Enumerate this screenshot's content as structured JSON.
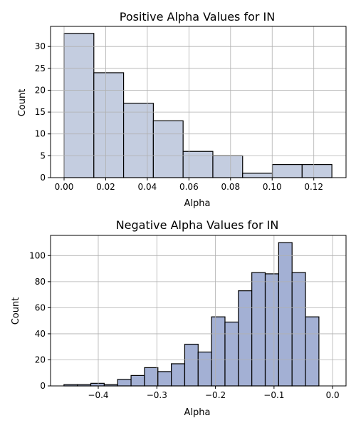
{
  "chart_data": [
    {
      "type": "bar",
      "title": "Positive Alpha Values for IN",
      "xlabel": "Alpha",
      "ylabel": "Count",
      "xlim": [
        -0.0065,
        0.1355
      ],
      "ylim": [
        0,
        34.6
      ],
      "grid": true,
      "bar_color": "#c4cde0",
      "edge_color": "#000000",
      "x_ticks": [
        {
          "value": 0.0,
          "label": "0.00"
        },
        {
          "value": 0.02,
          "label": "0.02"
        },
        {
          "value": 0.04,
          "label": "0.04"
        },
        {
          "value": 0.06,
          "label": "0.06"
        },
        {
          "value": 0.08,
          "label": "0.08"
        },
        {
          "value": 0.1,
          "label": "0.10"
        },
        {
          "value": 0.12,
          "label": "0.12"
        }
      ],
      "y_ticks": [
        {
          "value": 0,
          "label": "0"
        },
        {
          "value": 5,
          "label": "5"
        },
        {
          "value": 10,
          "label": "10"
        },
        {
          "value": 15,
          "label": "15"
        },
        {
          "value": 20,
          "label": "20"
        },
        {
          "value": 25,
          "label": "25"
        },
        {
          "value": 30,
          "label": "30"
        }
      ],
      "bins": [
        {
          "x0": 0.0,
          "x1": 0.0143,
          "count": 33
        },
        {
          "x0": 0.0143,
          "x1": 0.0286,
          "count": 24
        },
        {
          "x0": 0.0286,
          "x1": 0.0429,
          "count": 17
        },
        {
          "x0": 0.0429,
          "x1": 0.0572,
          "count": 13
        },
        {
          "x0": 0.0572,
          "x1": 0.0715,
          "count": 6
        },
        {
          "x0": 0.0715,
          "x1": 0.0858,
          "count": 5
        },
        {
          "x0": 0.0858,
          "x1": 0.1001,
          "count": 1
        },
        {
          "x0": 0.1001,
          "x1": 0.1144,
          "count": 3
        },
        {
          "x0": 0.1144,
          "x1": 0.1287,
          "count": 3
        }
      ]
    },
    {
      "type": "bar",
      "title": "Negative Alpha Values for IN",
      "xlabel": "Alpha",
      "ylabel": "Count",
      "xlim": [
        -0.4814,
        0.0229
      ],
      "ylim": [
        0,
        115.5
      ],
      "grid": true,
      "bar_color": "#a3b0d4",
      "edge_color": "#000000",
      "x_ticks": [
        {
          "value": -0.4,
          "label": "−0.4"
        },
        {
          "value": -0.3,
          "label": "−0.3"
        },
        {
          "value": -0.2,
          "label": "−0.2"
        },
        {
          "value": -0.1,
          "label": "−0.1"
        },
        {
          "value": 0.0,
          "label": "0.0"
        }
      ],
      "y_ticks": [
        {
          "value": 0,
          "label": "0"
        },
        {
          "value": 20,
          "label": "20"
        },
        {
          "value": 40,
          "label": "40"
        },
        {
          "value": 60,
          "label": "60"
        },
        {
          "value": 80,
          "label": "80"
        },
        {
          "value": 100,
          "label": "100"
        }
      ],
      "bins": [
        {
          "x0": -0.4585,
          "x1": -0.4356,
          "count": 1
        },
        {
          "x0": -0.4356,
          "x1": -0.4127,
          "count": 1
        },
        {
          "x0": -0.4127,
          "x1": -0.3898,
          "count": 2
        },
        {
          "x0": -0.3898,
          "x1": -0.3669,
          "count": 1
        },
        {
          "x0": -0.3669,
          "x1": -0.344,
          "count": 5
        },
        {
          "x0": -0.344,
          "x1": -0.3211,
          "count": 8
        },
        {
          "x0": -0.3211,
          "x1": -0.2982,
          "count": 14
        },
        {
          "x0": -0.2982,
          "x1": -0.2753,
          "count": 11
        },
        {
          "x0": -0.2753,
          "x1": -0.2524,
          "count": 17
        },
        {
          "x0": -0.2524,
          "x1": -0.2295,
          "count": 32
        },
        {
          "x0": -0.2295,
          "x1": -0.2066,
          "count": 26
        },
        {
          "x0": -0.2066,
          "x1": -0.1837,
          "count": 53
        },
        {
          "x0": -0.1837,
          "x1": -0.1608,
          "count": 49
        },
        {
          "x0": -0.1608,
          "x1": -0.1379,
          "count": 73
        },
        {
          "x0": -0.1379,
          "x1": -0.115,
          "count": 87
        },
        {
          "x0": -0.115,
          "x1": -0.0921,
          "count": 86
        },
        {
          "x0": -0.0921,
          "x1": -0.0692,
          "count": 110
        },
        {
          "x0": -0.0692,
          "x1": -0.0463,
          "count": 87
        },
        {
          "x0": -0.0463,
          "x1": -0.0234,
          "count": 53
        }
      ]
    }
  ]
}
